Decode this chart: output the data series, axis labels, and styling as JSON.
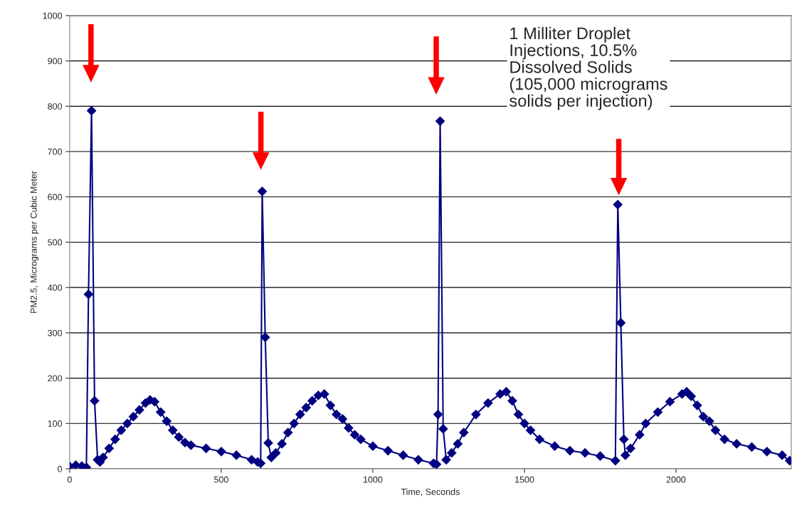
{
  "chart_data": {
    "type": "line",
    "xlabel": "Time, Seconds",
    "ylabel": "PM2.5, Micrograms per Cubic Meter",
    "annotations": [
      "1 Milliter Droplet\nInjections, 10.5%\nDissolved Solids\n(105,000 micrograms\nsolids per injection)"
    ],
    "series": [
      {
        "color": "#000080",
        "x": [
          0,
          20,
          40,
          55,
          62,
          72,
          82,
          92,
          100,
          110,
          130,
          150,
          170,
          190,
          210,
          230,
          250,
          265,
          280,
          300,
          320,
          340,
          360,
          380,
          400,
          450,
          500,
          550,
          600,
          620,
          630,
          635,
          645,
          655,
          665,
          680,
          700,
          720,
          740,
          760,
          780,
          800,
          820,
          840,
          860,
          880,
          900,
          920,
          940,
          960,
          1000,
          1050,
          1100,
          1150,
          1200,
          1210,
          1215,
          1222,
          1232,
          1242,
          1260,
          1280,
          1300,
          1340,
          1380,
          1420,
          1440,
          1460,
          1480,
          1500,
          1520,
          1550,
          1600,
          1650,
          1700,
          1750,
          1800,
          1808,
          1818,
          1828,
          1833,
          1850,
          1880,
          1900,
          1940,
          1980,
          2020,
          2035,
          2050,
          2070,
          2090,
          2110,
          2130,
          2160,
          2200,
          2250,
          2300,
          2350,
          2375
        ],
        "values": [
          5,
          8,
          6,
          3,
          385,
          790,
          150,
          20,
          15,
          25,
          45,
          65,
          85,
          100,
          115,
          130,
          145,
          152,
          148,
          125,
          105,
          85,
          70,
          58,
          52,
          45,
          38,
          30,
          20,
          15,
          12,
          612,
          290,
          57,
          25,
          35,
          55,
          80,
          100,
          120,
          135,
          150,
          162,
          165,
          140,
          120,
          110,
          90,
          75,
          65,
          50,
          40,
          30,
          20,
          12,
          10,
          120,
          767,
          88,
          20,
          35,
          55,
          80,
          120,
          145,
          165,
          170,
          150,
          120,
          100,
          85,
          65,
          50,
          40,
          35,
          28,
          18,
          583,
          322,
          65,
          30,
          45,
          75,
          100,
          125,
          148,
          165,
          170,
          160,
          140,
          115,
          105,
          85,
          65,
          55,
          48,
          38,
          30,
          18
        ]
      }
    ],
    "xlim": [
      0,
      2380
    ],
    "xticks": [
      0,
      500,
      1000,
      1500,
      2000
    ],
    "ylim": [
      0,
      1000
    ],
    "yticks": [
      0,
      100,
      200,
      300,
      400,
      500,
      600,
      700,
      800,
      900,
      1000
    ],
    "grid": "y",
    "marker": "diamond",
    "line_style": "solid",
    "legend": false
  }
}
